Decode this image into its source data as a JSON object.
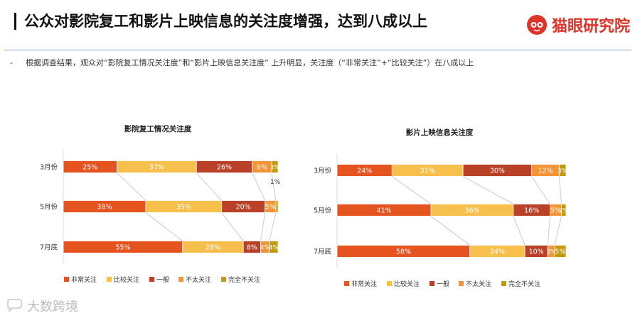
{
  "header": {
    "title": "公众对影院复工和影片上映信息的关注度增强，达到八成以上",
    "brand": "猫眼研究院",
    "brand_icon": "cat-eye-logo-icon",
    "brand_color": "#e0332a"
  },
  "subtitle": {
    "bullet": "-",
    "text": "根据调查结果，观众对“影院复工情况关注度”和“影片上映信息关注度” 上升明显，关注度（“非常关注”+“比较关注”）在八成以上"
  },
  "watermark": {
    "text": "大数跨境",
    "icon": "chat-bubble-icon"
  },
  "chart_data": [
    {
      "type": "bar",
      "orientation": "horizontal",
      "stacked": "percent",
      "title": "影院复工情况关注度",
      "categories": [
        "3月份",
        "5月份",
        "7月底"
      ],
      "series": [
        {
          "name": "非常关注",
          "color": "#e5531f",
          "values": [
            25,
            38,
            55
          ]
        },
        {
          "name": "比较关注",
          "color": "#f7c04d",
          "values": [
            37,
            35,
            28
          ]
        },
        {
          "name": "一般",
          "color": "#b84128",
          "values": [
            26,
            20,
            8
          ]
        },
        {
          "name": "不太关注",
          "color": "#f39437",
          "values": [
            9,
            5,
            4
          ]
        },
        {
          "name": "完全不关注",
          "color": "#c39a0c",
          "values": [
            3,
            1,
            4
          ]
        }
      ],
      "labels": [
        [
          "25%",
          "37%",
          "26%",
          "9%",
          "3%"
        ],
        [
          "38%",
          "35%",
          "20%",
          "5%",
          "1%"
        ],
        [
          "55%",
          "28%",
          "8%",
          "4%",
          "4%"
        ]
      ],
      "legend": "bottom"
    },
    {
      "type": "bar",
      "orientation": "horizontal",
      "stacked": "percent",
      "title": "影片上映信息关注度",
      "categories": [
        "3月份",
        "5月份",
        "7月底"
      ],
      "series": [
        {
          "name": "非常关注",
          "color": "#e5531f",
          "values": [
            24,
            41,
            58
          ]
        },
        {
          "name": "比较关注",
          "color": "#f7c04d",
          "values": [
            31,
            36,
            24
          ]
        },
        {
          "name": "一般",
          "color": "#b84128",
          "values": [
            30,
            16,
            10
          ]
        },
        {
          "name": "不太关注",
          "color": "#f39437",
          "values": [
            12,
            5,
            3
          ]
        },
        {
          "name": "完全不关注",
          "color": "#c39a0c",
          "values": [
            3,
            2,
            5
          ]
        }
      ],
      "labels": [
        [
          "24%",
          "31%",
          "30%",
          "12%",
          "3%"
        ],
        [
          "41%",
          "36%",
          "16%",
          "5%",
          "2%"
        ],
        [
          "58%",
          "24%",
          "10%",
          "3%",
          "5%"
        ]
      ],
      "legend": "bottom"
    }
  ]
}
